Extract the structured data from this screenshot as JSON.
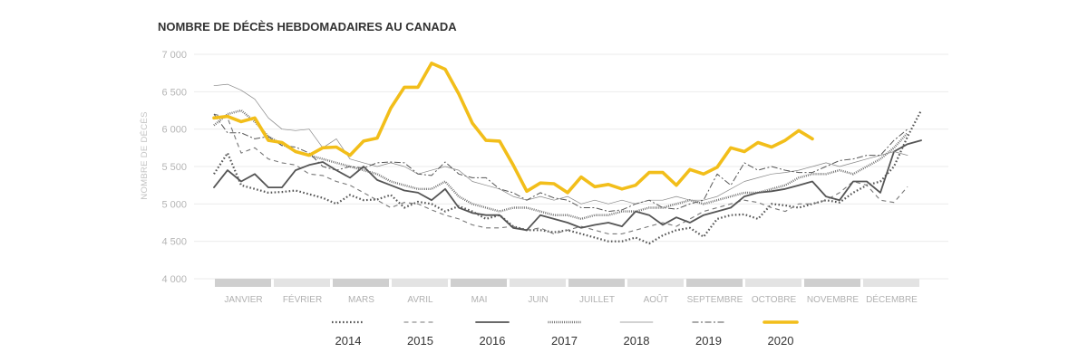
{
  "chart_data": {
    "type": "line",
    "title": "NOMBRE DE DÉCÈS HEBDOMADAIRES AU CANADA",
    "ylabel": "NOMBRE DE DÉCÈS",
    "xlabel": "",
    "ylim": [
      4000,
      7000
    ],
    "yticks": [
      4000,
      4500,
      5000,
      5500,
      6000,
      6500,
      7000
    ],
    "ytick_labels": [
      "4 000",
      "4 500",
      "5 000",
      "5 500",
      "6 000",
      "6 500",
      "7 000"
    ],
    "months": [
      "JANVIER",
      "FÉVRIER",
      "MARS",
      "AVRIL",
      "MAI",
      "JUIN",
      "JUILLET",
      "AOÛT",
      "SEPTEMBRE",
      "OCTOBRE",
      "NOVEMBRE",
      "DÉCEMBRE"
    ],
    "x_unit": "week",
    "xlim": [
      1,
      53
    ],
    "grid": true,
    "legend_position": "bottom",
    "series": [
      {
        "name": "2014",
        "style": "dotted",
        "color": "#555555",
        "x": [
          1,
          2,
          3,
          4,
          5,
          6,
          7,
          8,
          9,
          10,
          11,
          12,
          13,
          14,
          15,
          16,
          17,
          18,
          19,
          20,
          21,
          22,
          23,
          24,
          25,
          26,
          27,
          28,
          29,
          30,
          31,
          32,
          33,
          34,
          35,
          36,
          37,
          38,
          39,
          40,
          41,
          42,
          43,
          44,
          45,
          46,
          47,
          48,
          49,
          50,
          51,
          52,
          53
        ],
        "values": [
          5400,
          5680,
          5250,
          5200,
          5150,
          5160,
          5180,
          5130,
          5080,
          5000,
          5120,
          5050,
          5060,
          5120,
          4950,
          5030,
          5000,
          4900,
          4970,
          4900,
          4800,
          4850,
          4700,
          4650,
          4650,
          4620,
          4650,
          4600,
          4550,
          4500,
          4500,
          4550,
          4470,
          4580,
          4650,
          4680,
          4560,
          4800,
          4850,
          4860,
          4800,
          5000,
          4980,
          4950,
          5000,
          5050,
          5020,
          5150,
          5250,
          5300,
          5500,
          5900,
          6250
        ]
      },
      {
        "name": "2015",
        "style": "dashed",
        "color": "#777777",
        "x": [
          1,
          2,
          3,
          4,
          5,
          6,
          7,
          8,
          9,
          10,
          11,
          12,
          13,
          14,
          15,
          16,
          17,
          18,
          19,
          20,
          21,
          22,
          23,
          24,
          25,
          26,
          27,
          28,
          29,
          30,
          31,
          32,
          33,
          34,
          35,
          36,
          37,
          38,
          39,
          40,
          41,
          42,
          43,
          44,
          45,
          46,
          47,
          48,
          49,
          50,
          51,
          52
        ],
        "values": [
          6200,
          6150,
          5680,
          5750,
          5600,
          5550,
          5520,
          5400,
          5380,
          5300,
          5250,
          5150,
          5050,
          4950,
          5020,
          5000,
          4920,
          4850,
          4800,
          4720,
          4680,
          4680,
          4700,
          4650,
          4680,
          4600,
          4650,
          4700,
          4650,
          4600,
          4600,
          4650,
          4700,
          4750,
          4700,
          4800,
          4900,
          4950,
          5000,
          5050,
          5020,
          4950,
          4900,
          5000,
          5000,
          5050,
          5150,
          5300,
          5250,
          5050,
          5020,
          5230
        ]
      },
      {
        "name": "2016",
        "style": "solid-thick",
        "color": "#555555",
        "x": [
          1,
          2,
          3,
          4,
          5,
          6,
          7,
          8,
          9,
          10,
          11,
          12,
          13,
          14,
          15,
          16,
          17,
          18,
          19,
          20,
          21,
          22,
          23,
          24,
          25,
          26,
          27,
          28,
          29,
          30,
          31,
          32,
          33,
          34,
          35,
          36,
          37,
          38,
          39,
          40,
          41,
          42,
          43,
          44,
          45,
          46,
          47,
          48,
          49,
          50,
          51,
          52,
          53
        ],
        "values": [
          5220,
          5450,
          5300,
          5400,
          5220,
          5220,
          5450,
          5520,
          5560,
          5450,
          5350,
          5500,
          5320,
          5250,
          5180,
          5150,
          5050,
          5200,
          4950,
          4880,
          4850,
          4850,
          4680,
          4650,
          4850,
          4800,
          4750,
          4680,
          4720,
          4750,
          4700,
          4900,
          4850,
          4720,
          4820,
          4750,
          4850,
          4900,
          4950,
          5100,
          5150,
          5170,
          5200,
          5250,
          5300,
          5100,
          5050,
          5300,
          5300,
          5150,
          5700,
          5800,
          5850
        ]
      },
      {
        "name": "2017",
        "style": "dense-dotted",
        "color": "#666666",
        "x": [
          1,
          2,
          3,
          4,
          5,
          6,
          7,
          8,
          9,
          10,
          11,
          12,
          13,
          14,
          15,
          16,
          17,
          18,
          19,
          20,
          21,
          22,
          23,
          24,
          25,
          26,
          27,
          28,
          29,
          30,
          31,
          32,
          33,
          34,
          35,
          36,
          37,
          38,
          39,
          40,
          41,
          42,
          43,
          44,
          45,
          46,
          47,
          48,
          49,
          50,
          51,
          52
        ],
        "values": [
          6050,
          6200,
          6250,
          6100,
          5900,
          5800,
          5700,
          5650,
          5600,
          5550,
          5500,
          5450,
          5400,
          5300,
          5250,
          5200,
          5200,
          5300,
          5100,
          5000,
          4950,
          4900,
          4950,
          4950,
          4900,
          4850,
          4850,
          4800,
          4850,
          4850,
          4900,
          4900,
          4950,
          4950,
          5000,
          5050,
          5000,
          5050,
          5100,
          5150,
          5150,
          5200,
          5250,
          5350,
          5400,
          5400,
          5450,
          5400,
          5500,
          5600,
          5750,
          5950
        ]
      },
      {
        "name": "2018",
        "style": "solid-thin",
        "color": "#888888",
        "x": [
          1,
          2,
          3,
          4,
          5,
          6,
          7,
          8,
          9,
          10,
          11,
          12,
          13,
          14,
          15,
          16,
          17,
          18,
          19,
          20,
          21,
          22,
          23,
          24,
          25,
          26,
          27,
          28,
          29,
          30,
          31,
          32,
          33,
          34,
          35,
          36,
          37,
          38,
          39,
          40,
          41,
          42,
          43,
          44,
          45,
          46,
          47,
          48,
          49,
          50,
          51,
          52
        ],
        "values": [
          6580,
          6600,
          6520,
          6400,
          6150,
          6000,
          5980,
          6000,
          5750,
          5870,
          5600,
          5550,
          5500,
          5550,
          5500,
          5400,
          5450,
          5500,
          5450,
          5300,
          5250,
          5200,
          5100,
          5050,
          5100,
          5050,
          5100,
          5000,
          5050,
          5000,
          5050,
          5000,
          5050,
          5050,
          5100,
          5050,
          5050,
          5100,
          5200,
          5300,
          5350,
          5400,
          5420,
          5450,
          5500,
          5550,
          5500,
          5550,
          5600,
          5650,
          5700,
          5650
        ]
      },
      {
        "name": "2019",
        "style": "dash-dot",
        "color": "#555555",
        "x": [
          1,
          2,
          3,
          4,
          5,
          6,
          7,
          8,
          9,
          10,
          11,
          12,
          13,
          14,
          15,
          16,
          17,
          18,
          19,
          20,
          21,
          22,
          23,
          24,
          25,
          26,
          27,
          28,
          29,
          30,
          31,
          32,
          33,
          34,
          35,
          36,
          37,
          38,
          39,
          40,
          41,
          42,
          43,
          44,
          45,
          46,
          47,
          48,
          49,
          50,
          51,
          52
        ],
        "values": [
          6200,
          5950,
          5950,
          5870,
          5900,
          5780,
          5760,
          5680,
          5500,
          5450,
          5500,
          5480,
          5550,
          5560,
          5550,
          5400,
          5380,
          5560,
          5400,
          5350,
          5350,
          5200,
          5150,
          5050,
          5150,
          5080,
          5050,
          4950,
          4950,
          4900,
          4920,
          5000,
          5050,
          4950,
          4930,
          5000,
          5050,
          5400,
          5250,
          5550,
          5450,
          5500,
          5450,
          5420,
          5420,
          5500,
          5580,
          5600,
          5650,
          5650,
          5850,
          6000
        ]
      },
      {
        "name": "2020",
        "style": "solid-bold",
        "color": "#f2be1a",
        "x": [
          1,
          2,
          3,
          4,
          5,
          6,
          7,
          8,
          9,
          10,
          11,
          12,
          13,
          14,
          15,
          16,
          17,
          18,
          19,
          20,
          21,
          22,
          23,
          24,
          25,
          26,
          27,
          28,
          29,
          30,
          31,
          32,
          33,
          34,
          35,
          36,
          37,
          38,
          39,
          40,
          41,
          42,
          43,
          44,
          45
        ],
        "values": [
          6150,
          6170,
          6100,
          6150,
          5850,
          5820,
          5700,
          5650,
          5750,
          5760,
          5650,
          5840,
          5880,
          6280,
          6560,
          6560,
          6880,
          6800,
          6470,
          6080,
          5850,
          5840,
          5520,
          5170,
          5280,
          5270,
          5150,
          5360,
          5230,
          5260,
          5200,
          5250,
          5420,
          5420,
          5250,
          5460,
          5400,
          5490,
          5750,
          5700,
          5820,
          5760,
          5850,
          5980,
          5870
        ]
      }
    ]
  }
}
